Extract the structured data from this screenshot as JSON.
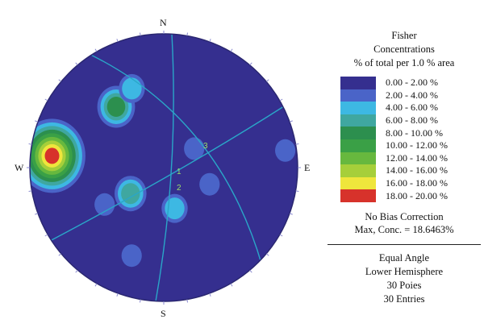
{
  "chart_data": {
    "type": "stereonet",
    "compass": {
      "north": "N",
      "south": "S",
      "east": "E",
      "west": "W"
    },
    "legend": {
      "title_lines": [
        "Fisher",
        "Concentrations",
        "% of total per 1.0 % area"
      ],
      "bins": [
        {
          "range": "0.00 - 2.00 %",
          "color": "#352f8f"
        },
        {
          "range": "2.00 - 4.00 %",
          "color": "#4a64c8"
        },
        {
          "range": "4.00 - 6.00 %",
          "color": "#3db8e3"
        },
        {
          "range": "6.00 - 8.00 %",
          "color": "#3fa7a0"
        },
        {
          "range": "8.00 - 10.00 %",
          "color": "#2c8f4e"
        },
        {
          "range": "10.00 - 12.00 %",
          "color": "#3aa046"
        },
        {
          "range": "12.00 - 14.00 %",
          "color": "#67b83e"
        },
        {
          "range": "14.00 - 16.00 %",
          "color": "#a6cf3a"
        },
        {
          "range": "16.00 - 18.00 %",
          "color": "#efe63c"
        },
        {
          "range": "18.00 - 20.00 %",
          "color": "#d7322b"
        }
      ]
    },
    "bias_correction": "No Bias Correction",
    "max_concentration_label": "Max, Conc. = 18.6463%",
    "projection": "Equal Angle",
    "hemisphere": "Lower Hemisphere",
    "poles_label": "30 Poies",
    "entries_label": "30 Entries",
    "plane_labels": [
      "1",
      "2",
      "3"
    ],
    "concentration_clusters": [
      {
        "trend_deg": 276,
        "plunge_deg": 10,
        "peak_percent": 18.6
      },
      {
        "trend_deg": 322,
        "plunge_deg": 30,
        "peak_percent": 10
      },
      {
        "trend_deg": 338,
        "plunge_deg": 25,
        "peak_percent": 6
      },
      {
        "trend_deg": 232,
        "plunge_deg": 55,
        "peak_percent": 8
      },
      {
        "trend_deg": 165,
        "plunge_deg": 55,
        "peak_percent": 5
      },
      {
        "trend_deg": 58,
        "plunge_deg": 60,
        "peak_percent": 4
      },
      {
        "trend_deg": 200,
        "plunge_deg": 20,
        "peak_percent": 4
      },
      {
        "trend_deg": 238,
        "plunge_deg": 35,
        "peak_percent": 4
      },
      {
        "trend_deg": 110,
        "plunge_deg": 50,
        "peak_percent": 4
      },
      {
        "trend_deg": 82,
        "plunge_deg": 5,
        "peak_percent": 4
      }
    ]
  }
}
